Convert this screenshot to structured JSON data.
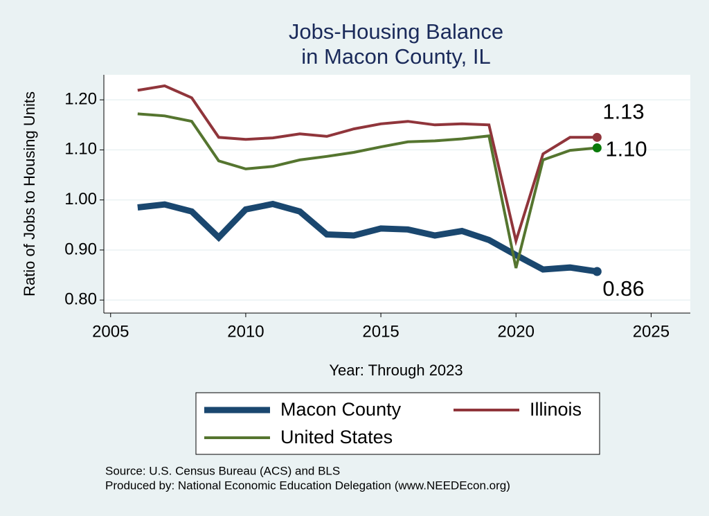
{
  "chart_data": {
    "type": "line",
    "title": [
      "Jobs-Housing Balance",
      "in Macon County, IL"
    ],
    "x_label": "Year: Through 2023",
    "y_label": "Ratio of Jobs to Housing Units",
    "x": [
      2006,
      2007,
      2008,
      2009,
      2010,
      2011,
      2012,
      2013,
      2014,
      2015,
      2016,
      2017,
      2018,
      2019,
      2020,
      2021,
      2022,
      2023
    ],
    "series": [
      {
        "name": "Macon County",
        "color": "#1a476f",
        "marker_color": "#1a476f",
        "width": 9,
        "values": [
          0.985,
          0.991,
          0.977,
          0.925,
          0.981,
          0.992,
          0.977,
          0.931,
          0.929,
          0.943,
          0.941,
          0.929,
          0.938,
          0.92,
          0.89,
          0.861,
          0.865,
          0.857
        ],
        "value_labels": [
          null,
          null,
          null,
          null,
          null,
          null,
          null,
          null,
          null,
          null,
          null,
          null,
          null,
          null,
          null,
          null,
          null,
          "0.86"
        ]
      },
      {
        "name": "Illinois",
        "color": "#90353b",
        "marker_color": "#90353b",
        "width": 4,
        "values": [
          1.219,
          1.228,
          1.204,
          1.125,
          1.121,
          1.124,
          1.132,
          1.127,
          1.142,
          1.152,
          1.157,
          1.15,
          1.152,
          1.15,
          0.918,
          1.092,
          1.125,
          1.125
        ],
        "value_labels": [
          null,
          null,
          null,
          null,
          null,
          null,
          null,
          null,
          null,
          null,
          null,
          null,
          null,
          null,
          null,
          null,
          null,
          "1.13"
        ]
      },
      {
        "name": "United States",
        "color": "#55752f",
        "marker_color": "#0a7a0a",
        "width": 4,
        "values": [
          1.172,
          1.168,
          1.157,
          1.078,
          1.062,
          1.067,
          1.08,
          1.087,
          1.095,
          1.106,
          1.116,
          1.118,
          1.122,
          1.128,
          0.864,
          1.08,
          1.099,
          1.104
        ],
        "value_labels": [
          null,
          null,
          null,
          null,
          null,
          null,
          null,
          null,
          null,
          null,
          null,
          null,
          null,
          null,
          null,
          null,
          null,
          "1.10"
        ]
      }
    ],
    "xlim": [
      2004.75,
      2026.45
    ],
    "xticks": [
      2005,
      2010,
      2015,
      2020,
      2025
    ],
    "ylim": [
      0.774,
      1.25
    ],
    "yticks": [
      {
        "value": 0.8,
        "label": "0.80"
      },
      {
        "value": 0.9,
        "label": "0.90"
      },
      {
        "value": 1.0,
        "label": "1.00"
      },
      {
        "value": 1.1,
        "label": "1.10"
      },
      {
        "value": 1.2,
        "label": "1.20"
      }
    ],
    "grid": true,
    "legend": "bottom",
    "notes": [
      "Source: U.S. Census Bureau (ACS) and BLS",
      "Produced by: National Economic Education Delegation (www.NEEDEcon.org)"
    ]
  }
}
